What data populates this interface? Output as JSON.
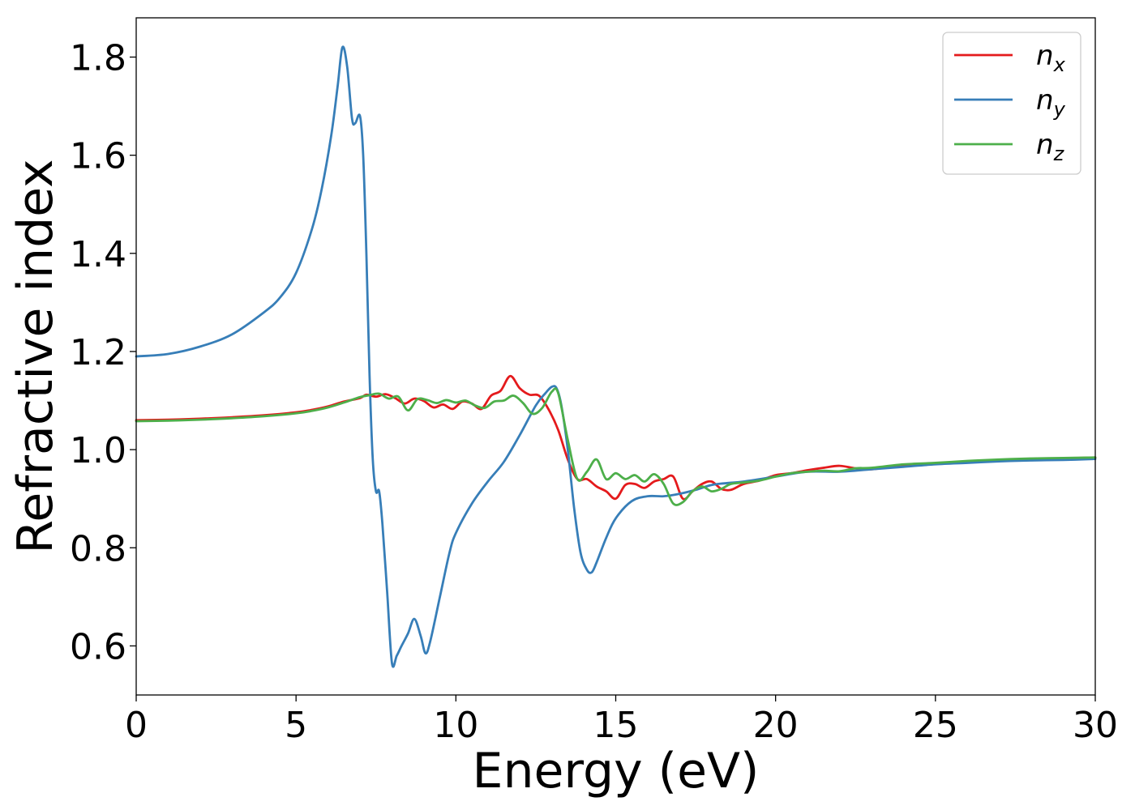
{
  "chart_data": {
    "type": "line",
    "title": "",
    "xlabel": "Energy (eV)",
    "ylabel": "Refractive index",
    "xlim": [
      0,
      30
    ],
    "ylim": [
      0.5,
      1.88
    ],
    "xticks": [
      0,
      5,
      10,
      15,
      20,
      25,
      30
    ],
    "yticks": [
      0.6,
      0.8,
      1.0,
      1.2,
      1.4,
      1.6,
      1.8
    ],
    "xtick_labels": [
      "0",
      "5",
      "10",
      "15",
      "20",
      "25",
      "30"
    ],
    "ytick_labels": [
      "0.6",
      "0.8",
      "1.0",
      "1.2",
      "1.4",
      "1.6",
      "1.8"
    ],
    "grid": false,
    "legend_position": "top-right",
    "series": [
      {
        "name": "n",
        "subscript": "x",
        "color": "#e41a1c",
        "x": [
          0,
          1,
          2,
          3,
          4,
          5,
          5.5,
          6,
          6.5,
          7,
          7.2,
          7.5,
          7.8,
          8.1,
          8.4,
          8.7,
          9,
          9.3,
          9.6,
          9.9,
          10.2,
          10.5,
          10.8,
          11.1,
          11.4,
          11.7,
          12,
          12.3,
          12.6,
          12.9,
          13.2,
          13.5,
          13.8,
          14.1,
          14.4,
          14.7,
          15,
          15.3,
          15.6,
          15.9,
          16.2,
          16.5,
          16.8,
          17.1,
          17.4,
          17.7,
          18,
          18.3,
          18.6,
          19,
          19.5,
          20,
          20.5,
          21,
          21.5,
          22,
          22.5,
          23,
          24,
          25,
          26,
          27,
          28,
          29,
          30
        ],
        "y": [
          1.06,
          1.061,
          1.063,
          1.066,
          1.07,
          1.076,
          1.081,
          1.088,
          1.098,
          1.105,
          1.112,
          1.108,
          1.113,
          1.105,
          1.094,
          1.104,
          1.099,
          1.086,
          1.092,
          1.083,
          1.098,
          1.094,
          1.083,
          1.11,
          1.12,
          1.15,
          1.125,
          1.112,
          1.11,
          1.082,
          1.04,
          0.98,
          0.94,
          0.94,
          0.925,
          0.915,
          0.9,
          0.928,
          0.93,
          0.922,
          0.935,
          0.94,
          0.945,
          0.9,
          0.915,
          0.93,
          0.935,
          0.92,
          0.918,
          0.93,
          0.937,
          0.948,
          0.952,
          0.958,
          0.963,
          0.967,
          0.962,
          0.96,
          0.968,
          0.972,
          0.975,
          0.978,
          0.98,
          0.982,
          0.984
        ]
      },
      {
        "name": "n",
        "subscript": "y",
        "color": "#377eb8",
        "x": [
          0,
          1,
          2,
          3,
          4,
          4.5,
          5,
          5.5,
          5.8,
          6.1,
          6.3,
          6.45,
          6.6,
          6.75,
          6.85,
          7,
          7.1,
          7.2,
          7.3,
          7.4,
          7.5,
          7.6,
          7.7,
          7.85,
          8,
          8.15,
          8.3,
          8.5,
          8.7,
          8.9,
          9.05,
          9.2,
          9.5,
          9.8,
          10,
          10.5,
          11,
          11.5,
          12,
          12.5,
          12.8,
          13,
          13.15,
          13.3,
          13.5,
          13.7,
          13.9,
          14.1,
          14.25,
          14.4,
          14.7,
          15,
          15.5,
          16,
          16.5,
          17,
          17.5,
          18,
          18.5,
          19,
          20,
          21,
          22,
          23,
          24,
          25,
          26,
          27,
          28,
          29,
          30
        ],
        "y": [
          1.19,
          1.195,
          1.21,
          1.235,
          1.28,
          1.31,
          1.36,
          1.45,
          1.53,
          1.64,
          1.74,
          1.82,
          1.78,
          1.675,
          1.665,
          1.68,
          1.6,
          1.4,
          1.15,
          0.98,
          0.915,
          0.915,
          0.85,
          0.71,
          0.565,
          0.58,
          0.6,
          0.625,
          0.655,
          0.62,
          0.585,
          0.61,
          0.7,
          0.79,
          0.83,
          0.89,
          0.935,
          0.975,
          1.03,
          1.09,
          1.115,
          1.128,
          1.125,
          1.09,
          1.0,
          0.88,
          0.79,
          0.755,
          0.75,
          0.77,
          0.82,
          0.86,
          0.895,
          0.905,
          0.905,
          0.91,
          0.918,
          0.928,
          0.932,
          0.935,
          0.945,
          0.955,
          0.955,
          0.96,
          0.965,
          0.97,
          0.973,
          0.976,
          0.978,
          0.979,
          0.981
        ]
      },
      {
        "name": "n",
        "subscript": "z",
        "color": "#4daf4a",
        "x": [
          0,
          1,
          2,
          3,
          4,
          5,
          5.5,
          6,
          6.5,
          7,
          7.3,
          7.6,
          7.9,
          8.2,
          8.5,
          8.8,
          9.1,
          9.4,
          9.7,
          10,
          10.3,
          10.6,
          10.9,
          11.2,
          11.5,
          11.8,
          12.1,
          12.4,
          12.7,
          13,
          13.2,
          13.5,
          13.8,
          14.1,
          14.4,
          14.7,
          15,
          15.3,
          15.6,
          15.9,
          16.2,
          16.5,
          16.8,
          17.1,
          17.4,
          17.7,
          18,
          18.3,
          18.6,
          19,
          19.5,
          20,
          20.5,
          21,
          21.5,
          22,
          22.5,
          23,
          24,
          25,
          26,
          27,
          28,
          29,
          30
        ],
        "y": [
          1.058,
          1.059,
          1.061,
          1.064,
          1.068,
          1.074,
          1.079,
          1.086,
          1.096,
          1.107,
          1.111,
          1.114,
          1.104,
          1.108,
          1.08,
          1.103,
          1.101,
          1.095,
          1.101,
          1.096,
          1.1,
          1.09,
          1.085,
          1.098,
          1.1,
          1.11,
          1.095,
          1.073,
          1.085,
          1.118,
          1.115,
          1.02,
          0.94,
          0.955,
          0.98,
          0.94,
          0.952,
          0.94,
          0.948,
          0.935,
          0.95,
          0.93,
          0.89,
          0.893,
          0.915,
          0.925,
          0.915,
          0.92,
          0.93,
          0.933,
          0.937,
          0.945,
          0.952,
          0.955,
          0.957,
          0.956,
          0.962,
          0.963,
          0.97,
          0.973,
          0.977,
          0.98,
          0.982,
          0.983,
          0.984
        ]
      }
    ]
  }
}
